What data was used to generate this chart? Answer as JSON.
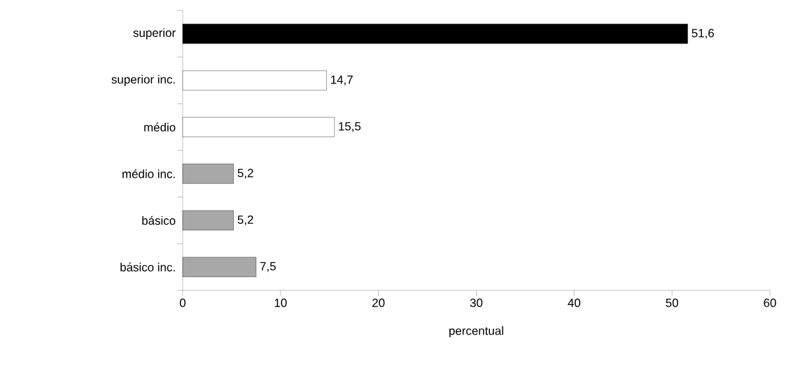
{
  "chart_data": {
    "type": "bar",
    "orientation": "horizontal",
    "xlabel": "percentual",
    "categories": [
      "superior",
      "superior inc.",
      "médio",
      "médio inc.",
      "básico",
      "básico inc."
    ],
    "values": [
      51.6,
      14.7,
      15.5,
      5.2,
      5.2,
      7.5
    ],
    "colors": [
      "#000000",
      "#ffffff",
      "#ffffff",
      "#a8a8a8",
      "#a8a8a8",
      "#a8a8a8"
    ],
    "value_labels": [
      "51,6",
      "14,7",
      "15,5",
      "5,2",
      "5,2",
      "7,5"
    ],
    "xlim": [
      0,
      60
    ],
    "xticks": [
      0,
      10,
      20,
      30,
      40,
      50,
      60
    ],
    "grid": false
  }
}
